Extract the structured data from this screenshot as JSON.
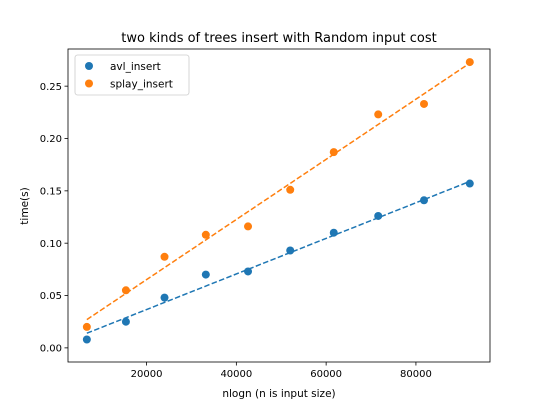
{
  "chart_data": {
    "type": "scatter",
    "title": "two kinds of trees insert with Random input cost",
    "xlabel": "nlogn (n is input size)",
    "ylabel": "time(s)",
    "xlim": [
      2500,
      96500
    ],
    "ylim": [
      -0.0135,
      0.2855
    ],
    "xticks": [
      20000,
      40000,
      60000,
      80000
    ],
    "yticks": [
      0.0,
      0.05,
      0.1,
      0.15,
      0.2,
      0.25
    ],
    "ytick_format": 2,
    "grid": false,
    "legend_position": "top-left",
    "series": [
      {
        "name": "avl_insert",
        "color": "#1f77b4",
        "x": [
          6700,
          15400,
          24000,
          33200,
          42600,
          52000,
          61700,
          71600,
          81800,
          92000
        ],
        "y": [
          0.008,
          0.025,
          0.048,
          0.07,
          0.073,
          0.093,
          0.11,
          0.126,
          0.141,
          0.157
        ],
        "fit": {
          "x": [
            6700,
            92000
          ],
          "y": [
            0.014,
            0.159
          ]
        }
      },
      {
        "name": "splay_insert",
        "color": "#ff7f0e",
        "x": [
          6700,
          15400,
          24000,
          33200,
          42600,
          52000,
          61700,
          71600,
          81800,
          92000
        ],
        "y": [
          0.02,
          0.055,
          0.087,
          0.108,
          0.116,
          0.151,
          0.187,
          0.223,
          0.233,
          0.273
        ],
        "fit": {
          "x": [
            6700,
            92000
          ],
          "y": [
            0.027,
            0.272
          ]
        }
      }
    ]
  }
}
